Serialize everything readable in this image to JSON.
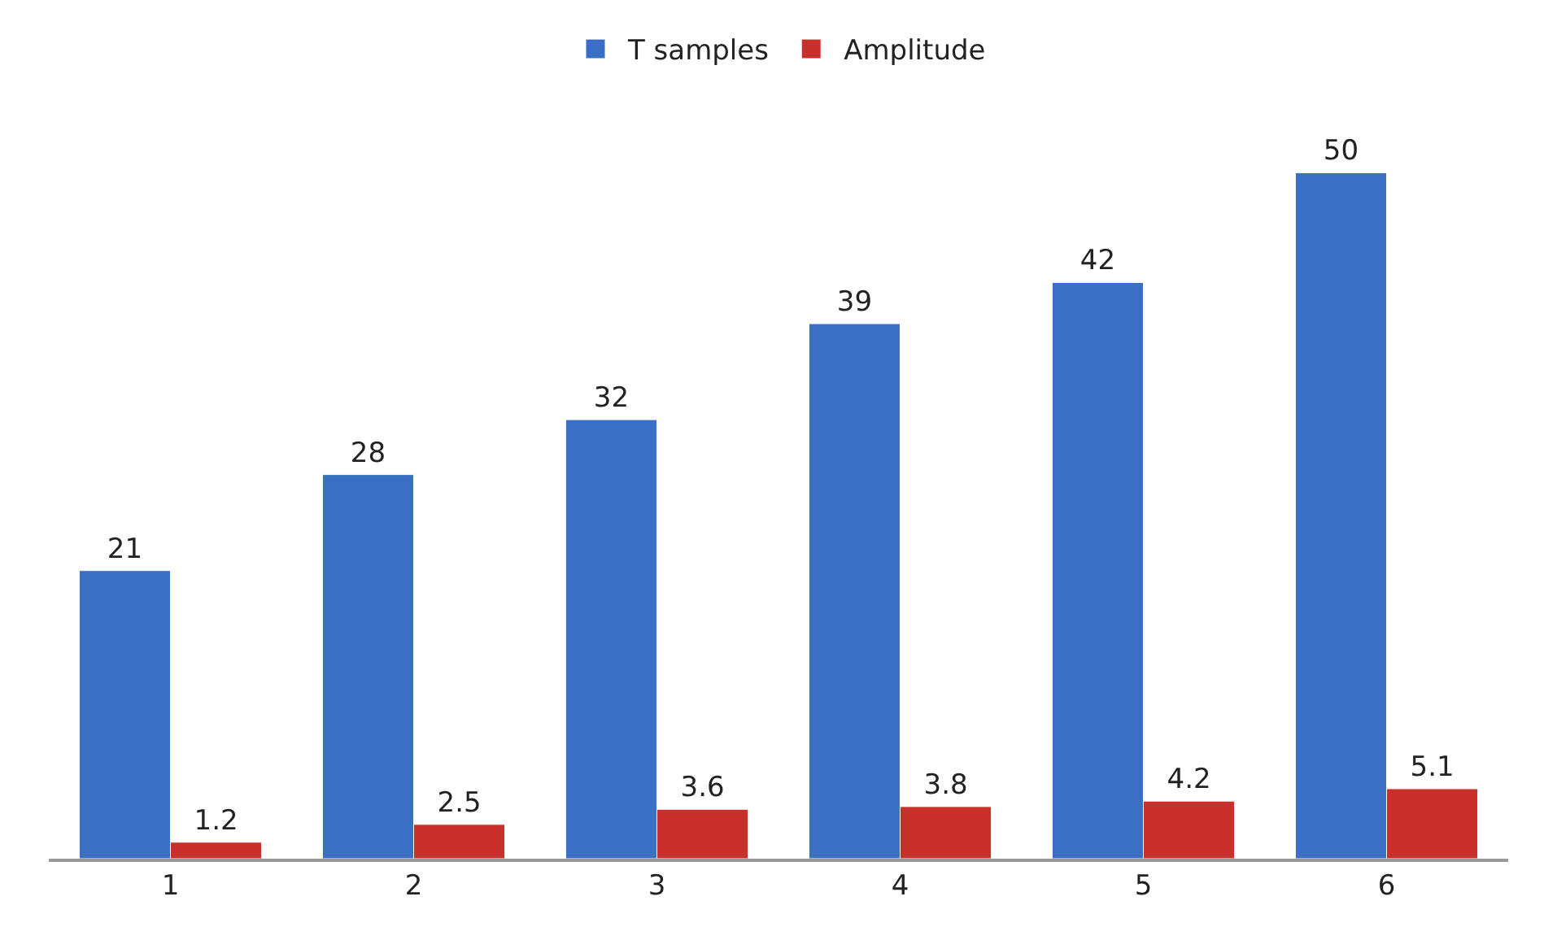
{
  "chart_data": {
    "type": "bar",
    "categories": [
      "1",
      "2",
      "3",
      "4",
      "5",
      "6"
    ],
    "series": [
      {
        "name": "T samples",
        "color": "#3b6fc4",
        "values": [
          21,
          28,
          32,
          39,
          42,
          50
        ]
      },
      {
        "name": "Amplitude",
        "color": "#c8302c",
        "values": [
          1.2,
          2.5,
          3.6,
          3.8,
          4.2,
          5.1
        ]
      }
    ],
    "data_labels": true,
    "legend": "top"
  }
}
